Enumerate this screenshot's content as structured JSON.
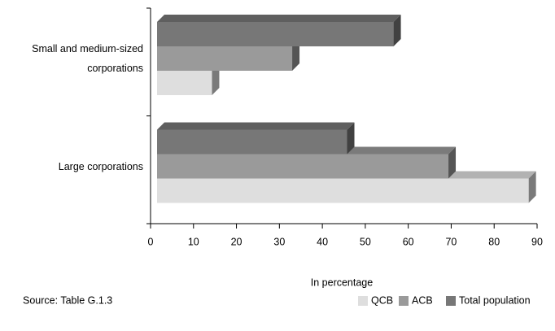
{
  "chart_data": {
    "type": "bar3d_horizontal",
    "categories": [
      "Small and medium-sized corporations",
      "Large corporations"
    ],
    "series": [
      {
        "name": "QCB",
        "color": "#dedede",
        "values": [
          13,
          88
        ]
      },
      {
        "name": "ACB",
        "color": "#9a9a9a",
        "values": [
          32,
          69
        ]
      },
      {
        "name": "Total population",
        "color": "#777777",
        "values": [
          56,
          45
        ]
      }
    ],
    "xlim": [
      0,
      90
    ],
    "xticks": [
      0,
      10,
      20,
      30,
      40,
      50,
      60,
      70,
      80,
      90
    ],
    "xlabel": "In percentage",
    "source": "Source: Table G.1.3",
    "legend": "bottom-right"
  }
}
